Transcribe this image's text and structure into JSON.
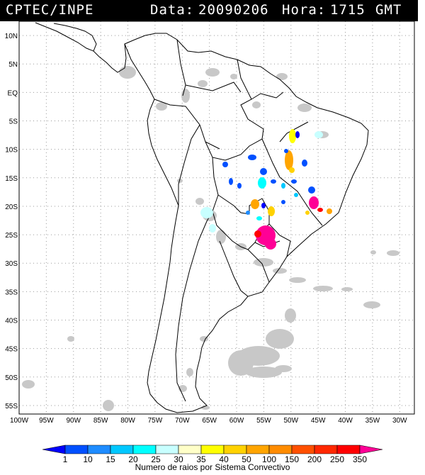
{
  "header": {
    "org": "CPTEC/INPE",
    "date_label": "Data:",
    "date": "20090206",
    "time_label": "Hora:",
    "time": "1715",
    "timezone": "GMT"
  },
  "axes": {
    "lat_labels": [
      "10N",
      "5N",
      "EQ",
      "5S",
      "10S",
      "15S",
      "20S",
      "25S",
      "30S",
      "35S",
      "40S",
      "45S",
      "50S",
      "55S"
    ],
    "lat_values": [
      10,
      5,
      0,
      -5,
      -10,
      -15,
      -20,
      -25,
      -30,
      -35,
      -40,
      -45,
      -50,
      -55
    ],
    "lon_labels": [
      "100W",
      "95W",
      "90W",
      "85W",
      "80W",
      "75W",
      "70W",
      "65W",
      "60W",
      "55W",
      "50W",
      "45W",
      "40W",
      "35W",
      "30W"
    ],
    "lon_values": [
      -100,
      -95,
      -90,
      -85,
      -80,
      -75,
      -70,
      -65,
      -60,
      -55,
      -50,
      -45,
      -40,
      -35,
      -30
    ],
    "lat_range": [
      -56.5,
      12.5
    ],
    "lon_range": [
      -100,
      -27.3
    ]
  },
  "legend": {
    "labels": [
      "1",
      "10",
      "15",
      "20",
      "25",
      "30",
      "35",
      "40",
      "50",
      "100",
      "150",
      "200",
      "250",
      "350"
    ],
    "colors": [
      "#0000ff",
      "#0050ff",
      "#1e8cff",
      "#00c8ff",
      "#00ffff",
      "#c8ffff",
      "#ffffc8",
      "#ffff00",
      "#ffd200",
      "#ffa500",
      "#ff8c00",
      "#ff5000",
      "#ff2800",
      "#ff0000",
      "#ff0096"
    ],
    "caption": "Numero de raios por Sistema Convectivo"
  },
  "colors": {
    "cloud_gray": "#c8c8c8",
    "coast": "#000000",
    "grid": "#9a9a9a"
  }
}
